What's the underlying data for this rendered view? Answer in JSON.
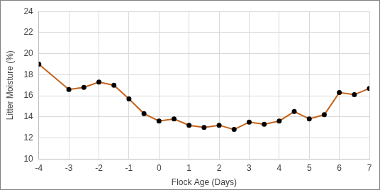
{
  "chart_data": {
    "type": "line",
    "x_label": "Flock Age (Days)",
    "y_label": "Litter Moisture (%)",
    "x": [
      -4,
      -3,
      -2.5,
      -2,
      -1.5,
      -1,
      -0.5,
      0,
      0.5,
      1,
      1.5,
      2,
      2.5,
      3,
      3.5,
      4,
      4.5,
      5,
      5.5,
      6,
      6.5,
      7
    ],
    "values": [
      19.0,
      16.6,
      16.8,
      17.3,
      17.0,
      15.7,
      14.3,
      13.6,
      13.8,
      13.2,
      13.0,
      13.2,
      12.8,
      13.5,
      13.3,
      13.6,
      14.5,
      13.8,
      14.2,
      16.3,
      16.1,
      16.7
    ],
    "color": "#c5631c",
    "marker": "circle",
    "xlim": [
      -4,
      7
    ],
    "xticks": [
      -4,
      -3,
      -2,
      -1,
      0,
      1,
      2,
      3,
      4,
      5,
      6,
      7
    ],
    "ylim": [
      10,
      24
    ],
    "yticks": [
      10,
      12,
      14,
      16,
      18,
      20,
      22,
      24
    ],
    "grid": true
  }
}
